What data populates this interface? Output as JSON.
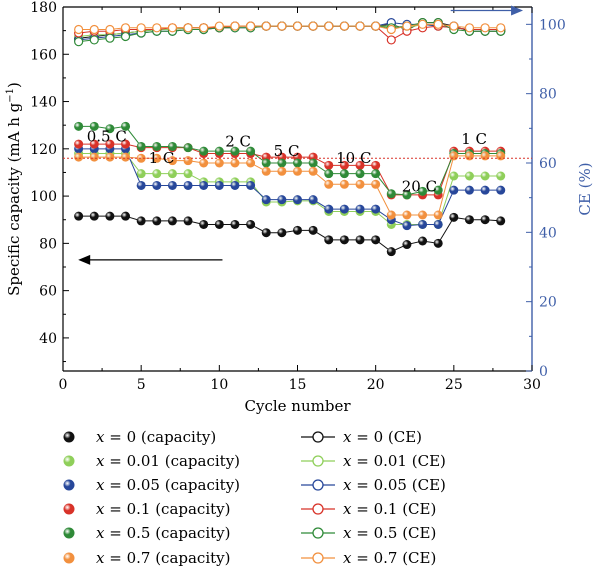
{
  "chart_data": {
    "type": "scatter",
    "xlabel": "Cycle number",
    "ylabel": "Specific capacity (mA h g",
    "ylabel_sup": "−1",
    "ylabel_close": ")",
    "y2label": "CE (%)",
    "xlim": [
      0,
      30
    ],
    "ylim": [
      26,
      180
    ],
    "y2lim": [
      0,
      105
    ],
    "x_ticks": [
      "0",
      "5",
      "10",
      "15",
      "20",
      "25",
      "30"
    ],
    "y_ticks": [
      "40",
      "60",
      "80",
      "100",
      "120",
      "140",
      "160",
      "180"
    ],
    "y2_ticks": [
      "0",
      "20",
      "40",
      "60",
      "80",
      "100"
    ],
    "grid": false,
    "legend_position": "bottom",
    "reference_line_y": 116,
    "rate_labels": [
      {
        "text": "0.5 C",
        "x": 2.8,
        "y": 123
      },
      {
        "text": "1 C",
        "x": 6.3,
        "y": 114
      },
      {
        "text": "2 C",
        "x": 11.2,
        "y": 121
      },
      {
        "text": "5 C",
        "x": 14.3,
        "y": 117
      },
      {
        "text": "10 C",
        "x": 18.6,
        "y": 114
      },
      {
        "text": "20 C",
        "x": 22.8,
        "y": 102
      },
      {
        "text": "1 C",
        "x": 26.3,
        "y": 122
      }
    ],
    "arrows": [
      {
        "direction": "left",
        "axis": "left",
        "x_from": 10.2,
        "x_to": 1.1,
        "y": 73
      },
      {
        "direction": "right",
        "axis": "right",
        "x_from": 24.8,
        "x_to": 29.3,
        "y": 104
      }
    ],
    "capacity_series": [
      {
        "name": "x = 0 (capacity)",
        "label_var": "x",
        "label_rest": " = 0 (capacity)",
        "color": "#111111",
        "values": [
          91.5,
          91.5,
          91.5,
          91.5,
          89.5,
          89.5,
          89.5,
          89.5,
          88,
          88,
          88,
          88,
          84.5,
          84.5,
          85.5,
          85.5,
          81.5,
          81.5,
          81.5,
          81.5,
          76.5,
          79.5,
          81,
          80,
          91,
          90,
          90,
          89.5
        ]
      },
      {
        "name": "x = 0.01 (capacity)",
        "label_var": "x",
        "label_rest": " = 0.01 (capacity)",
        "color": "#8fcf5a",
        "values": [
          118,
          118,
          118,
          118,
          109.5,
          109.5,
          109.5,
          109.5,
          106,
          106,
          106,
          106,
          97.5,
          97.5,
          98,
          98,
          93.5,
          93.5,
          93.5,
          93.5,
          88,
          88,
          88,
          88,
          108.5,
          108.5,
          108.5,
          108.5
        ]
      },
      {
        "name": "x = 0.05 (capacity)",
        "label_var": "x",
        "label_rest": " = 0.05 (capacity)",
        "color": "#27479a",
        "values": [
          120,
          120,
          120,
          120,
          104.5,
          104.5,
          104.5,
          104.5,
          104.5,
          104.5,
          104.5,
          104.5,
          98.5,
          98.5,
          98.5,
          98.5,
          94.5,
          94.5,
          94.5,
          94.5,
          90,
          87.5,
          88,
          88,
          102.5,
          102.5,
          102.5,
          102.5
        ]
      },
      {
        "name": "x = 0.1 (capacity)",
        "label_var": "x",
        "label_rest": " = 0.1 (capacity)",
        "color": "#d83228",
        "values": [
          122,
          122,
          122,
          122,
          120.5,
          120.5,
          120.5,
          120.5,
          118,
          118,
          118,
          118,
          116.5,
          116.5,
          116.5,
          116.5,
          113,
          113,
          113,
          113,
          100.5,
          100.5,
          100.5,
          100.5,
          119,
          119,
          119,
          119
        ]
      },
      {
        "name": "x = 0.5 (capacity)",
        "label_var": "x",
        "label_rest": " = 0.5 (capacity)",
        "color": "#2f8a38",
        "values": [
          129.5,
          129.5,
          128.5,
          129.5,
          121,
          121,
          121,
          120.5,
          119,
          119,
          119,
          119,
          114,
          114,
          114,
          114,
          109.5,
          109.5,
          109.5,
          109.5,
          101,
          100.5,
          102,
          102.5,
          118,
          118,
          118,
          118
        ]
      },
      {
        "name": "x = 0.7 (capacity)",
        "label_var": "x",
        "label_rest": " = 0.7 (capacity)",
        "color": "#f2903e",
        "values": [
          116.5,
          116.5,
          116.5,
          116.5,
          116,
          116,
          115,
          115,
          114,
          114,
          114,
          114,
          110.5,
          110.5,
          110.5,
          110.5,
          105,
          105,
          105,
          105,
          92,
          92,
          92,
          92,
          117,
          117,
          117,
          117
        ]
      }
    ],
    "ce_series": [
      {
        "name": "x = 0 (CE)",
        "label_var": "x",
        "label_rest": " = 0 (CE)",
        "color": "#111111",
        "values": [
          96,
          96.5,
          97,
          97.5,
          98,
          98.5,
          98.5,
          99,
          99,
          99,
          99.5,
          99.5,
          99.5,
          99.5,
          99.5,
          99.5,
          99.5,
          99.5,
          99.5,
          99.5,
          100,
          98.5,
          100.5,
          100.5,
          99.5,
          98,
          98,
          98
        ]
      },
      {
        "name": "x = 0.01 (CE)",
        "label_var": "x",
        "label_rest": " = 0.01 (CE)",
        "color": "#8fcf5a",
        "values": [
          96.5,
          97,
          97,
          97.5,
          98,
          98.5,
          98.5,
          99,
          99,
          99,
          99.5,
          99.5,
          99.5,
          99.5,
          99.5,
          99.5,
          99.5,
          99.5,
          99.5,
          99.5,
          99.5,
          99,
          100,
          99.5,
          99,
          98.5,
          98.5,
          98.5
        ]
      },
      {
        "name": "x = 0.05 (CE)",
        "label_var": "x",
        "label_rest": " = 0.05 (CE)",
        "color": "#27479a",
        "values": [
          95.5,
          96,
          96.5,
          97,
          97.5,
          98,
          98,
          98.5,
          98.5,
          99,
          99,
          99,
          99.5,
          99.5,
          99.5,
          99.5,
          99.5,
          99.5,
          99.5,
          99.5,
          100.5,
          100,
          100,
          99.5,
          99,
          98.5,
          98.5,
          98.5
        ]
      },
      {
        "name": "x = 0.1 (CE)",
        "label_var": "x",
        "label_rest": " = 0.1 (CE)",
        "color": "#d83228",
        "values": [
          97.5,
          98,
          98,
          98.5,
          98.5,
          98.5,
          99,
          99,
          99,
          99,
          99.5,
          99.5,
          99.5,
          99.5,
          99.5,
          99.5,
          99.5,
          99.5,
          99.5,
          99.5,
          95.5,
          98,
          99,
          99.5,
          99,
          98.5,
          98.5,
          98.5
        ]
      },
      {
        "name": "x = 0.5 (CE)",
        "label_var": "x",
        "label_rest": " = 0.5 (CE)",
        "color": "#2f8a38",
        "values": [
          95,
          95.5,
          96,
          96.5,
          97.5,
          98,
          98,
          98.5,
          98.5,
          99,
          99,
          99,
          99.5,
          99.5,
          99.5,
          99.5,
          99.5,
          99.5,
          99.5,
          99.5,
          99,
          99.5,
          100.5,
          100.5,
          98.5,
          98,
          98,
          98
        ]
      },
      {
        "name": "x = 0.7 (CE)",
        "label_var": "x",
        "label_rest": " = 0.7 (CE)",
        "color": "#f2903e",
        "values": [
          98.5,
          98.5,
          98.5,
          99,
          99,
          99,
          99,
          99,
          99,
          99.5,
          99.5,
          99.5,
          99.5,
          99.5,
          99.5,
          99.5,
          99.5,
          99.5,
          99.5,
          99.5,
          98.5,
          99.5,
          100,
          100,
          99.5,
          99,
          99,
          99
        ]
      }
    ],
    "colors": {
      "left_axis": "#000000",
      "right_axis": "#3f5fa8",
      "arrow_right": "#3f5fa8",
      "reference_line": "#d83228"
    }
  }
}
